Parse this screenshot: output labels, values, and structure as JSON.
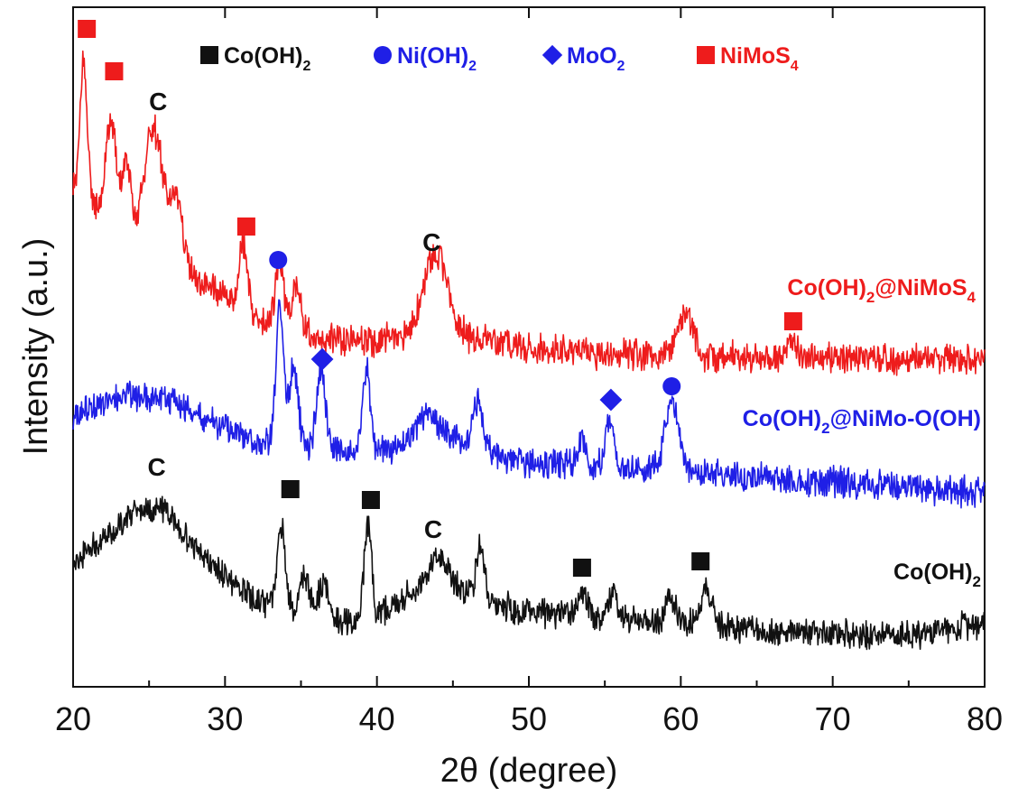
{
  "chart_data": {
    "type": "line",
    "xlabel": "2θ (degree)",
    "ylabel": "Intensity (a.u.)",
    "xlim": [
      20,
      80
    ],
    "x_ticks": [
      20,
      30,
      40,
      50,
      60,
      70,
      80
    ],
    "y_ticks_shown": false,
    "legend": {
      "placement": "top",
      "entries": [
        {
          "marker": "square",
          "color": "#111111",
          "text": "Co(OH)",
          "sub": "2"
        },
        {
          "marker": "circle",
          "color": "#1f1fe6",
          "text": "Ni(OH)",
          "sub": "2"
        },
        {
          "marker": "diamond",
          "color": "#1f1fe6",
          "text": "MoO",
          "sub": "2"
        },
        {
          "marker": "square",
          "color": "#ee1c1c",
          "text": "NiMoS",
          "sub": "4"
        }
      ]
    },
    "series": [
      {
        "name": "Co(OH)2@NiMoS4",
        "label_parts": [
          {
            "t": "Co(OH)"
          },
          {
            "t": "2",
            "sub": true
          },
          {
            "t": "@NiMoS"
          },
          {
            "t": "4",
            "sub": true
          }
        ],
        "color": "#ee1c1c",
        "baseline": 385,
        "noise": 14,
        "seed": 11,
        "background": [
          [
            20,
            210
          ],
          [
            21.5,
            235
          ],
          [
            23,
            260
          ],
          [
            24.5,
            270
          ],
          [
            26,
            282
          ],
          [
            28,
            305
          ],
          [
            30,
            330
          ],
          [
            32,
            355
          ],
          [
            34,
            368
          ],
          [
            36,
            374
          ],
          [
            38,
            378
          ],
          [
            40,
            378
          ],
          [
            42,
            372
          ],
          [
            43.5,
            368
          ],
          [
            45,
            368
          ],
          [
            47,
            378
          ],
          [
            50,
            385
          ],
          [
            55,
            392
          ],
          [
            60,
            395
          ],
          [
            65,
            395
          ],
          [
            70,
            397
          ],
          [
            75,
            397
          ],
          [
            80,
            397
          ]
        ],
        "peaks": [
          [
            20.7,
            150,
            0.25
          ],
          [
            22.5,
            120,
            0.35
          ],
          [
            23.5,
            80,
            0.3
          ],
          [
            25.3,
            135,
            0.6
          ],
          [
            26.8,
            70,
            0.4
          ],
          [
            31.2,
            75,
            0.3
          ],
          [
            33.6,
            70,
            0.3
          ],
          [
            34.7,
            55,
            0.3
          ],
          [
            43.4,
            55,
            0.6
          ],
          [
            44.3,
            55,
            0.6
          ],
          [
            60.3,
            45,
            0.5
          ],
          [
            67.3,
            20,
            0.3
          ]
        ]
      },
      {
        "name": "Co(OH)2@NiMo-O(OH)",
        "label_parts": [
          {
            "t": "Co(OH)"
          },
          {
            "t": "2",
            "sub": true
          },
          {
            "t": "@NiMo-O(OH)"
          }
        ],
        "color": "#1f1fe6",
        "baseline": 545,
        "noise": 14,
        "seed": 23,
        "background": [
          [
            20,
            460
          ],
          [
            22,
            445
          ],
          [
            24,
            440
          ],
          [
            26,
            440
          ],
          [
            28,
            460
          ],
          [
            30,
            475
          ],
          [
            32,
            490
          ],
          [
            34,
            495
          ],
          [
            36,
            500
          ],
          [
            38,
            500
          ],
          [
            40,
            500
          ],
          [
            42,
            492
          ],
          [
            44,
            480
          ],
          [
            46,
            492
          ],
          [
            48,
            505
          ],
          [
            50,
            512
          ],
          [
            55,
            518
          ],
          [
            60,
            522
          ],
          [
            65,
            528
          ],
          [
            70,
            534
          ],
          [
            75,
            540
          ],
          [
            80,
            545
          ]
        ],
        "peaks": [
          [
            33.6,
            155,
            0.25
          ],
          [
            34.5,
            90,
            0.3
          ],
          [
            36.3,
            90,
            0.3
          ],
          [
            39.3,
            95,
            0.25
          ],
          [
            43.3,
            25,
            0.6
          ],
          [
            46.6,
            50,
            0.3
          ],
          [
            53.5,
            30,
            0.3
          ],
          [
            55.3,
            50,
            0.3
          ],
          [
            59.4,
            80,
            0.45
          ]
        ]
      },
      {
        "name": "Co(OH)2",
        "label_parts": [
          {
            "t": "Co(OH)"
          },
          {
            "t": "2",
            "sub": true
          }
        ],
        "color": "#111111",
        "baseline": 700,
        "noise": 13,
        "seed": 37,
        "background": [
          [
            20,
            620
          ],
          [
            22,
            600
          ],
          [
            24,
            568
          ],
          [
            26,
            565
          ],
          [
            28,
            605
          ],
          [
            30,
            640
          ],
          [
            32,
            665
          ],
          [
            34,
            675
          ],
          [
            36,
            680
          ],
          [
            38,
            688
          ],
          [
            40,
            684
          ],
          [
            42,
            660
          ],
          [
            44,
            640
          ],
          [
            46,
            655
          ],
          [
            48,
            670
          ],
          [
            50,
            678
          ],
          [
            55,
            685
          ],
          [
            60,
            690
          ],
          [
            65,
            698
          ],
          [
            70,
            702
          ],
          [
            75,
            704
          ],
          [
            80,
            690
          ]
        ],
        "peaks": [
          [
            33.7,
            90,
            0.25
          ],
          [
            35.2,
            40,
            0.3
          ],
          [
            36.5,
            40,
            0.3
          ],
          [
            39.4,
            105,
            0.25
          ],
          [
            44.0,
            25,
            0.6
          ],
          [
            46.8,
            60,
            0.25
          ],
          [
            53.5,
            30,
            0.3
          ],
          [
            55.5,
            30,
            0.3
          ],
          [
            59.3,
            30,
            0.3
          ],
          [
            61.7,
            40,
            0.35
          ]
        ]
      }
    ],
    "phase_markers": [
      {
        "phase": "NiMoS4",
        "marker": "square",
        "color": "#ee1c1c",
        "x": 20.9,
        "y": 32
      },
      {
        "phase": "NiMoS4",
        "marker": "square",
        "color": "#ee1c1c",
        "x": 22.7,
        "y": 79
      },
      {
        "phase": "NiMoS4",
        "marker": "square",
        "color": "#ee1c1c",
        "x": 31.4,
        "y": 251
      },
      {
        "phase": "Ni(OH)2",
        "marker": "circle",
        "color": "#1f1fe6",
        "x": 33.5,
        "y": 288
      },
      {
        "phase": "NiMoS4",
        "marker": "square",
        "color": "#ee1c1c",
        "x": 67.4,
        "y": 356
      },
      {
        "phase": "MoO2",
        "marker": "diamond",
        "color": "#1f1fe6",
        "x": 36.4,
        "y": 398
      },
      {
        "phase": "MoO2",
        "marker": "diamond",
        "color": "#1f1fe6",
        "x": 55.4,
        "y": 443
      },
      {
        "phase": "Ni(OH)2",
        "marker": "circle",
        "color": "#1f1fe6",
        "x": 59.4,
        "y": 428
      },
      {
        "phase": "Co(OH)2",
        "marker": "square",
        "color": "#111111",
        "x": 34.3,
        "y": 542
      },
      {
        "phase": "Co(OH)2",
        "marker": "square",
        "color": "#111111",
        "x": 39.6,
        "y": 554
      },
      {
        "phase": "Co(OH)2",
        "marker": "square",
        "color": "#111111",
        "x": 53.5,
        "y": 629
      },
      {
        "phase": "Co(OH)2",
        "marker": "square",
        "color": "#111111",
        "x": 61.3,
        "y": 622
      }
    ],
    "annotations": [
      {
        "text": "C",
        "x": 25.6,
        "y": 112
      },
      {
        "text": "C",
        "x": 43.6,
        "y": 268
      },
      {
        "text": "C",
        "x": 25.5,
        "y": 517
      },
      {
        "text": "C",
        "x": 43.7,
        "y": 586
      }
    ]
  }
}
